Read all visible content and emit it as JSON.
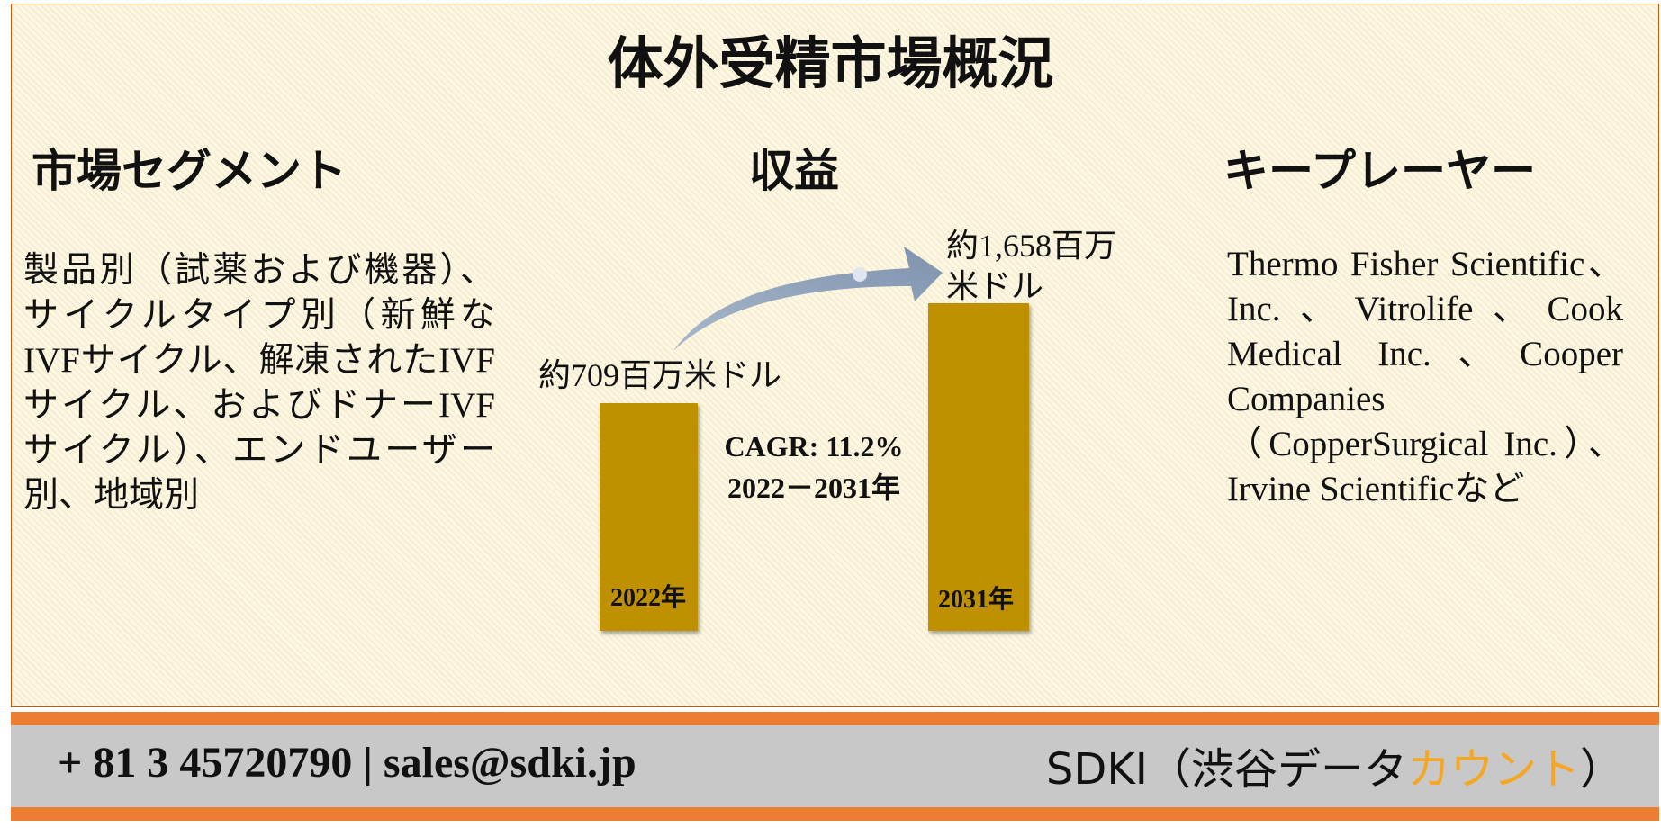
{
  "title": "体外受精市場概況",
  "segments": {
    "heading": "市場セグメント",
    "text": "製品別（試薬および機器）、サイクルタイプ別（新鮮なIVFサイクル、解凍されたIVFサイクル、およびドナーIVFサイクル）、エンドユーザー別、地域別"
  },
  "revenue": {
    "heading": "収益",
    "start_label": "約709百万米ドル",
    "end_label_lines": [
      "約1,658百万",
      "米ドル"
    ],
    "cagr": "CAGR: 11.2%",
    "period": "2022－2031年",
    "years": [
      "2022年",
      "2031年"
    ]
  },
  "players": {
    "heading": "キープレーヤー",
    "text": "Thermo Fisher Scientific、Inc.、Vitrolife、Cook Medical Inc.、Cooper Companies（CopperSurgical Inc.）、Irvine Scientificなど"
  },
  "footer": {
    "contact": "+ 81 3 45720790 | sales@sdki.jp",
    "company": "SDKI（渋谷データ",
    "company_highlight": "カウント",
    "company_end": "）"
  }
}
